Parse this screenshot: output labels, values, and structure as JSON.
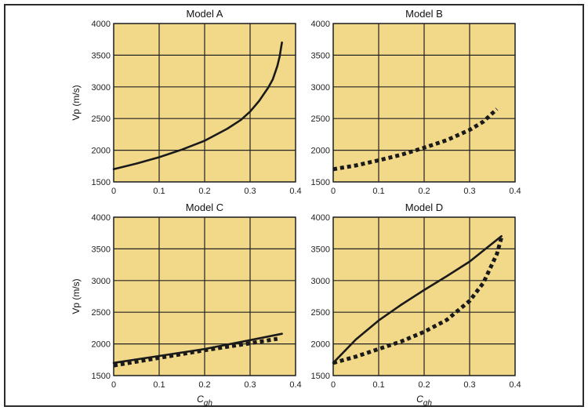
{
  "chart_data": [
    {
      "type": "line",
      "title": "Model A",
      "xlabel": "",
      "ylabel": "Vp (m/s)",
      "xlim": [
        0,
        0.4
      ],
      "ylim": [
        1500,
        4000
      ],
      "xticks": [
        "0",
        "0.1",
        "0.2",
        "0.3",
        "0.4"
      ],
      "yticks": [
        "1500",
        "2000",
        "2500",
        "3000",
        "3500",
        "4000"
      ],
      "grid": true,
      "series": [
        {
          "style": "solid",
          "x": [
            0,
            0.05,
            0.1,
            0.15,
            0.2,
            0.25,
            0.28,
            0.3,
            0.32,
            0.34,
            0.35,
            0.36,
            0.365,
            0.37
          ],
          "y": [
            1700,
            1790,
            1890,
            2010,
            2150,
            2340,
            2480,
            2610,
            2780,
            2990,
            3120,
            3330,
            3480,
            3700
          ]
        }
      ]
    },
    {
      "type": "line",
      "title": "Model B",
      "xlabel": "",
      "ylabel": "",
      "xlim": [
        0,
        0.4
      ],
      "ylim": [
        1500,
        4000
      ],
      "xticks": [
        "0",
        "0.1",
        "0.2",
        "0.3",
        "0.4"
      ],
      "yticks": [
        "1500",
        "2000",
        "2500",
        "3000",
        "3500",
        "4000"
      ],
      "grid": true,
      "series": [
        {
          "style": "dotted",
          "x": [
            0,
            0.05,
            0.1,
            0.15,
            0.2,
            0.25,
            0.3,
            0.33,
            0.36
          ],
          "y": [
            1700,
            1760,
            1840,
            1930,
            2040,
            2160,
            2320,
            2450,
            2650
          ]
        }
      ]
    },
    {
      "type": "line",
      "title": "Model C",
      "xlabel": "Cgh",
      "ylabel": "Vp (m/s)",
      "xlim": [
        0,
        0.4
      ],
      "ylim": [
        1500,
        4000
      ],
      "xticks": [
        "0",
        "0.1",
        "0.2",
        "0.3",
        "0.4"
      ],
      "yticks": [
        "1500",
        "2000",
        "2500",
        "3000",
        "3500",
        "4000"
      ],
      "grid": true,
      "series": [
        {
          "style": "solid",
          "x": [
            0,
            0.1,
            0.2,
            0.3,
            0.37
          ],
          "y": [
            1700,
            1810,
            1920,
            2060,
            2160
          ]
        },
        {
          "style": "dotted",
          "x": [
            0,
            0.1,
            0.2,
            0.3,
            0.36
          ],
          "y": [
            1660,
            1780,
            1900,
            2010,
            2080
          ]
        }
      ]
    },
    {
      "type": "line",
      "title": "Model D",
      "xlabel": "Cgh",
      "ylabel": "",
      "xlim": [
        0,
        0.4
      ],
      "ylim": [
        1500,
        4000
      ],
      "xticks": [
        "0",
        "0.1",
        "0.2",
        "0.3",
        "0.4"
      ],
      "yticks": [
        "1500",
        "2000",
        "2500",
        "3000",
        "3500",
        "4000"
      ],
      "grid": true,
      "series": [
        {
          "style": "solid",
          "x": [
            0,
            0.05,
            0.1,
            0.15,
            0.2,
            0.25,
            0.3,
            0.37
          ],
          "y": [
            1700,
            2070,
            2370,
            2620,
            2850,
            3070,
            3300,
            3700
          ]
        },
        {
          "style": "dotted",
          "x": [
            0,
            0.05,
            0.1,
            0.15,
            0.2,
            0.25,
            0.3,
            0.33,
            0.36,
            0.37
          ],
          "y": [
            1700,
            1800,
            1920,
            2040,
            2190,
            2380,
            2680,
            2960,
            3420,
            3680
          ]
        }
      ]
    }
  ]
}
